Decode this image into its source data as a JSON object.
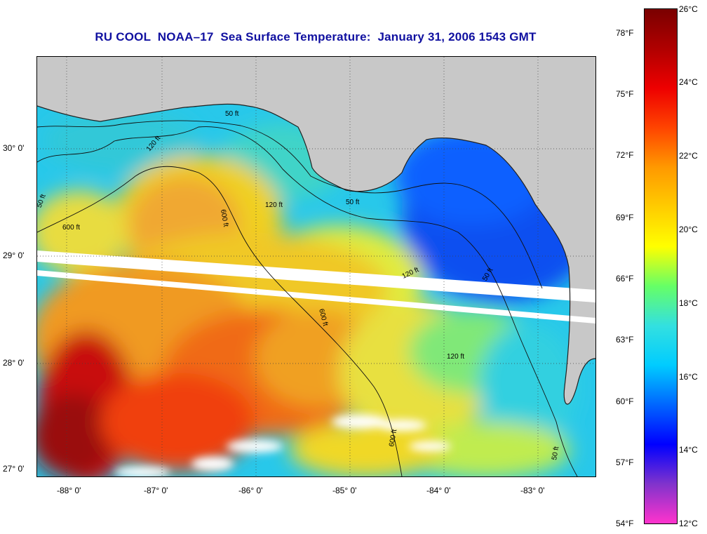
{
  "title": "RU COOL  NOAA–17  Sea Surface Temperature:  January 31, 2006 1543 GMT",
  "map": {
    "lon_labels": [
      "-88° 0'",
      "-87° 0'",
      "-86° 0'",
      "-85° 0'",
      "-84° 0'",
      "-83° 0'"
    ],
    "lat_labels": [
      "30° 0'",
      "29° 0'",
      "28° 0'",
      "27° 0'"
    ],
    "contour_labels": [
      "50 ft",
      "120 ft",
      "600 ft",
      "120 ft",
      "50 ft",
      "600 ft",
      "120 ft",
      "50 ft",
      "50 ft",
      "600 ft",
      "120 ft",
      "600 ft",
      "50 ft"
    ]
  },
  "colorbar": {
    "fahrenheit_labels": [
      "78°F",
      "75°F",
      "72°F",
      "69°F",
      "66°F",
      "63°F",
      "60°F",
      "57°F",
      "54°F"
    ],
    "celsius_labels": [
      "26°C",
      "24°C",
      "22°C",
      "20°C",
      "18°C",
      "16°C",
      "14°C",
      "12°C"
    ],
    "stops": [
      "#ff33cc",
      "#8033cc",
      "#0000ff",
      "#0066ff",
      "#00ccff",
      "#33e0e0",
      "#66ff66",
      "#ffff00",
      "#ffcc00",
      "#ff9900",
      "#ff4400",
      "#ee0000",
      "#b00000",
      "#7a0000"
    ]
  },
  "colors": {
    "title": "#1010a0",
    "land": "#c8c8c8",
    "missing_data": "#ffffff"
  }
}
